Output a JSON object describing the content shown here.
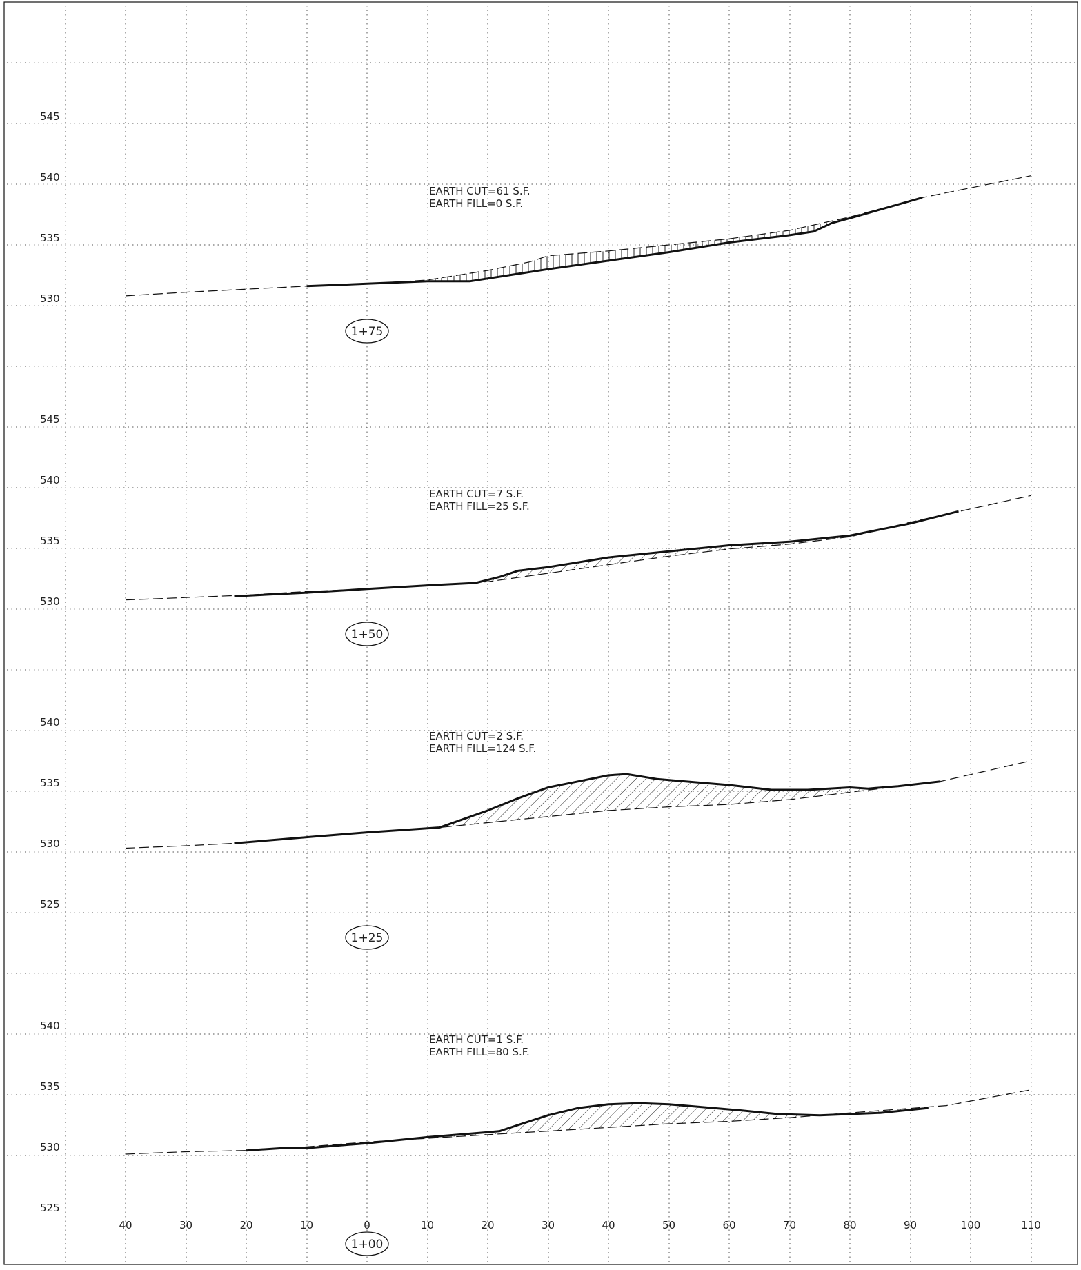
{
  "sheet": {
    "x_ticks": [
      "40",
      "30",
      "20",
      "10",
      "0",
      "10",
      "20",
      "30",
      "40",
      "50",
      "60",
      "70",
      "80",
      "90",
      "100",
      "110"
    ],
    "x_tick_values": [
      -40,
      -30,
      -20,
      -10,
      0,
      10,
      20,
      30,
      40,
      50,
      60,
      70,
      80,
      90,
      100,
      110
    ]
  },
  "sections": [
    {
      "station": "1+75",
      "cut_label": "EARTH  CUT=61  S.F.",
      "fill_label": "EARTH  FILL=0  S.F.",
      "elev_labels": [
        "545",
        "540",
        "535",
        "530"
      ],
      "existing_ground": [
        [
          -40,
          530.8
        ],
        [
          -30,
          531.1
        ],
        [
          -10,
          531.6
        ],
        [
          0,
          531.8
        ],
        [
          10,
          532.1
        ],
        [
          20,
          532.9
        ],
        [
          27,
          533.6
        ],
        [
          30,
          534.1
        ],
        [
          40,
          534.5
        ],
        [
          50,
          535.0
        ],
        [
          60,
          535.5
        ],
        [
          70,
          536.2
        ],
        [
          80,
          537.3
        ],
        [
          92,
          538.9
        ],
        [
          110,
          540.7
        ]
      ],
      "proposed_grade": [
        [
          -10,
          531.6
        ],
        [
          0,
          531.8
        ],
        [
          10,
          532.0
        ],
        [
          17,
          532.0
        ],
        [
          30,
          533.0
        ],
        [
          40,
          533.7
        ],
        [
          50,
          534.4
        ],
        [
          60,
          535.2
        ],
        [
          70,
          535.8
        ],
        [
          74,
          536.1
        ],
        [
          77,
          536.8
        ],
        [
          80,
          537.2
        ],
        [
          92,
          538.9
        ]
      ],
      "hatch": "cut"
    },
    {
      "station": "1+50",
      "cut_label": "EARTH  CUT=7  S.F.",
      "fill_label": "EARTH  FILL=25  S.F.",
      "elev_labels": [
        "545",
        "540",
        "535",
        "530"
      ],
      "existing_ground": [
        [
          -40,
          530.7
        ],
        [
          -30,
          530.9
        ],
        [
          -20,
          531.1
        ],
        [
          -10,
          531.4
        ],
        [
          0,
          531.6
        ],
        [
          10,
          531.9
        ],
        [
          20,
          532.2
        ],
        [
          30,
          532.9
        ],
        [
          40,
          533.6
        ],
        [
          50,
          534.3
        ],
        [
          60,
          534.9
        ],
        [
          70,
          535.3
        ],
        [
          80,
          535.9
        ],
        [
          90,
          537.1
        ],
        [
          100,
          538.2
        ],
        [
          110,
          539.3
        ]
      ],
      "proposed_grade": [
        [
          -22,
          531.0
        ],
        [
          -10,
          531.3
        ],
        [
          0,
          531.6
        ],
        [
          10,
          531.9
        ],
        [
          18,
          532.1
        ],
        [
          22,
          532.6
        ],
        [
          25,
          533.1
        ],
        [
          30,
          533.4
        ],
        [
          40,
          534.2
        ],
        [
          50,
          534.7
        ],
        [
          60,
          535.2
        ],
        [
          70,
          535.5
        ],
        [
          80,
          536.0
        ],
        [
          90,
          537.0
        ],
        [
          98,
          538.0
        ]
      ],
      "hatch": "fill"
    },
    {
      "station": "1+25",
      "cut_label": "EARTH  CUT=2  S.F.",
      "fill_label": "EARTH  FILL=124  S.F.",
      "elev_labels": [
        "540",
        "535",
        "530",
        "525"
      ],
      "existing_ground": [
        [
          -40,
          530.2
        ],
        [
          -30,
          530.4
        ],
        [
          -22,
          530.6
        ],
        [
          -10,
          531.1
        ],
        [
          0,
          531.5
        ],
        [
          12,
          531.9
        ],
        [
          20,
          532.3
        ],
        [
          30,
          532.8
        ],
        [
          40,
          533.3
        ],
        [
          50,
          533.6
        ],
        [
          60,
          533.8
        ],
        [
          70,
          534.2
        ],
        [
          80,
          534.8
        ],
        [
          95,
          535.7
        ],
        [
          110,
          537.4
        ]
      ],
      "proposed_grade": [
        [
          -22,
          530.6
        ],
        [
          -10,
          531.1
        ],
        [
          0,
          531.5
        ],
        [
          12,
          531.9
        ],
        [
          20,
          533.3
        ],
        [
          25,
          534.3
        ],
        [
          30,
          535.2
        ],
        [
          35,
          535.7
        ],
        [
          40,
          536.2
        ],
        [
          43,
          536.3
        ],
        [
          48,
          535.9
        ],
        [
          55,
          535.6
        ],
        [
          60,
          535.4
        ],
        [
          67,
          535.0
        ],
        [
          73,
          535.0
        ],
        [
          80,
          535.2
        ],
        [
          83,
          535.1
        ],
        [
          88,
          535.3
        ],
        [
          95,
          535.7
        ]
      ],
      "hatch": "fill"
    },
    {
      "station": "1+00",
      "cut_label": "EARTH  CUT=1  S.F.",
      "fill_label": "EARTH  FILL=80  S.F.",
      "elev_labels": [
        "540",
        "535",
        "530",
        "525"
      ],
      "existing_ground": [
        [
          -40,
          530.0
        ],
        [
          -30,
          530.2
        ],
        [
          -20,
          530.3
        ],
        [
          -10,
          530.6
        ],
        [
          0,
          531.0
        ],
        [
          10,
          531.3
        ],
        [
          20,
          531.6
        ],
        [
          30,
          531.9
        ],
        [
          40,
          532.2
        ],
        [
          50,
          532.5
        ],
        [
          60,
          532.7
        ],
        [
          70,
          533.0
        ],
        [
          80,
          533.4
        ],
        [
          96,
          534.0
        ],
        [
          110,
          535.3
        ]
      ],
      "proposed_grade": [
        [
          -20,
          530.3
        ],
        [
          -14,
          530.5
        ],
        [
          -10,
          530.5
        ],
        [
          0,
          530.9
        ],
        [
          10,
          531.4
        ],
        [
          20,
          531.8
        ],
        [
          22,
          531.9
        ],
        [
          25,
          532.4
        ],
        [
          30,
          533.2
        ],
        [
          35,
          533.8
        ],
        [
          40,
          534.1
        ],
        [
          45,
          534.2
        ],
        [
          50,
          534.1
        ],
        [
          55,
          533.9
        ],
        [
          62,
          533.6
        ],
        [
          68,
          533.3
        ],
        [
          75,
          533.2
        ],
        [
          85,
          533.4
        ],
        [
          93,
          533.8
        ]
      ],
      "hatch": "fill"
    }
  ]
}
